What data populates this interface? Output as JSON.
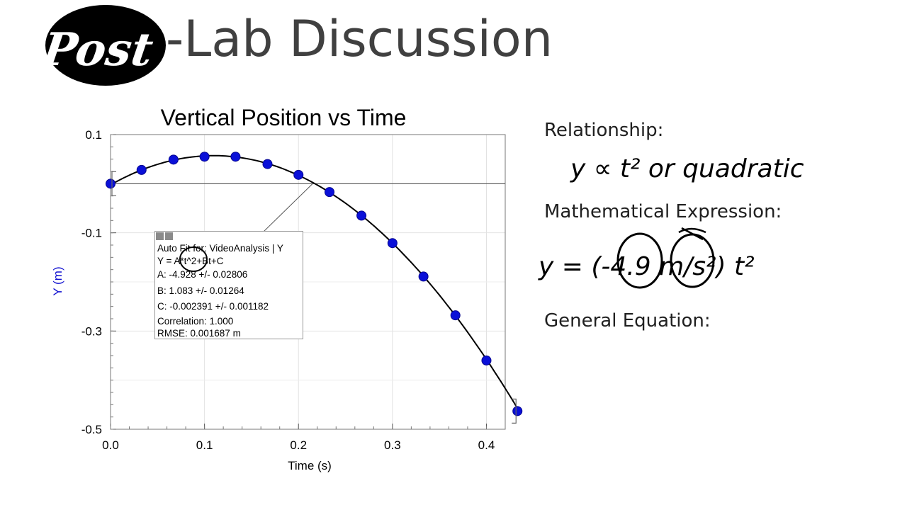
{
  "slide": {
    "logo_text": "Post",
    "title_rest": "-Lab Discussion"
  },
  "notes": {
    "relationship_label": "Relationship:",
    "relationship_handwriting": "y ∝ t² or quadratic",
    "expression_label": "Mathematical Expression:",
    "expression_handwriting": "y = (-4.9 m/s²) t²",
    "general_label": "General Equation:"
  },
  "fit_box": {
    "header": "Auto Fit for: VideoAnalysis | Y",
    "equation": "Y = A*t^2+Bt+C",
    "a": "A: -4.928 +/- 0.02806",
    "b": "B: 1.083 +/- 0.01264",
    "c": "C: -0.002391 +/- 0.001182",
    "correlation": "Correlation: 1.000",
    "rmse": "RMSE: 0.001687 m"
  },
  "chart_data": {
    "type": "scatter",
    "title": "Vertical Position vs Time",
    "xlabel": "Time (s)",
    "ylabel": "Y (m)",
    "xlim": [
      0.0,
      0.42
    ],
    "ylim": [
      -0.5,
      0.1
    ],
    "x_ticks": [
      "0.0",
      "0.1",
      "0.2",
      "0.3",
      "0.4"
    ],
    "y_ticks": [
      "0.1",
      "-0.1",
      "-0.3",
      "-0.5"
    ],
    "grid": true,
    "point_color": "#0a10d8",
    "fit": {
      "a": -4.928,
      "b": 1.083,
      "c": -0.002391
    },
    "x": [
      0.0,
      0.033,
      0.067,
      0.1,
      0.133,
      0.167,
      0.2,
      0.233,
      0.267,
      0.3,
      0.333,
      0.367,
      0.4,
      0.433
    ],
    "y": [
      0.0,
      0.028,
      0.049,
      0.055,
      0.055,
      0.04,
      0.018,
      -0.017,
      -0.065,
      -0.121,
      -0.189,
      -0.268,
      -0.36,
      -0.463
    ]
  }
}
